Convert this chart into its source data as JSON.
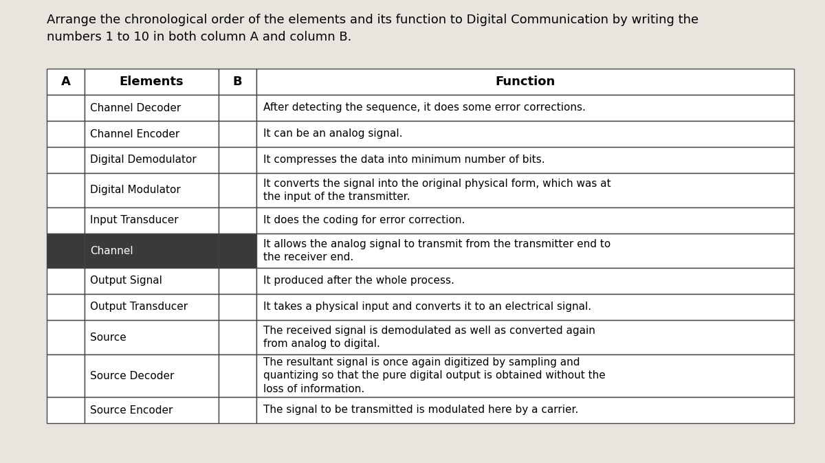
{
  "title": "Arrange the chronological order of the elements and its function to Digital Communication by writing the\nnumbers 1 to 10 in both column A and column B.",
  "col_headers": [
    "A",
    "Elements",
    "B",
    "Function"
  ],
  "rows": [
    {
      "element": "Channel Decoder",
      "function": "After detecting the sequence, it does some error corrections.",
      "dark_row": false
    },
    {
      "element": "Channel Encoder",
      "function": "It can be an analog signal.",
      "dark_row": false
    },
    {
      "element": "Digital Demodulator",
      "function": "It compresses the data into minimum number of bits.",
      "dark_row": false
    },
    {
      "element": "Digital Modulator",
      "function": "It converts the signal into the original physical form, which was at\nthe input of the transmitter.",
      "dark_row": false
    },
    {
      "element": "Input Transducer",
      "function": "It does the coding for error correction.",
      "dark_row": false
    },
    {
      "element": "Channel",
      "function": "It allows the analog signal to transmit from the transmitter end to\nthe receiver end.",
      "dark_row": true
    },
    {
      "element": "Output Signal",
      "function": "It produced after the whole process.",
      "dark_row": false
    },
    {
      "element": "Output Transducer",
      "function": "It takes a physical input and converts it to an electrical signal.",
      "dark_row": false
    },
    {
      "element": "Source",
      "function": "The received signal is demodulated as well as converted again\nfrom analog to digital.",
      "dark_row": false
    },
    {
      "element": "Source Decoder",
      "function": "The resultant signal is once again digitized by sampling and\nquantizing so that the pure digital output is obtained without the\nloss of information.",
      "dark_row": false
    },
    {
      "element": "Source Encoder",
      "function": "The signal to be transmitted is modulated here by a carrier.",
      "dark_row": false
    }
  ],
  "bg_color": "#e8e4de",
  "table_bg": "#ffffff",
  "header_bg": "#ffffff",
  "dark_row_color": "#3a3a3a",
  "border_color": "#444444",
  "text_color": "#000000",
  "title_fontsize": 13,
  "cell_fontsize": 11,
  "header_fontsize": 13
}
